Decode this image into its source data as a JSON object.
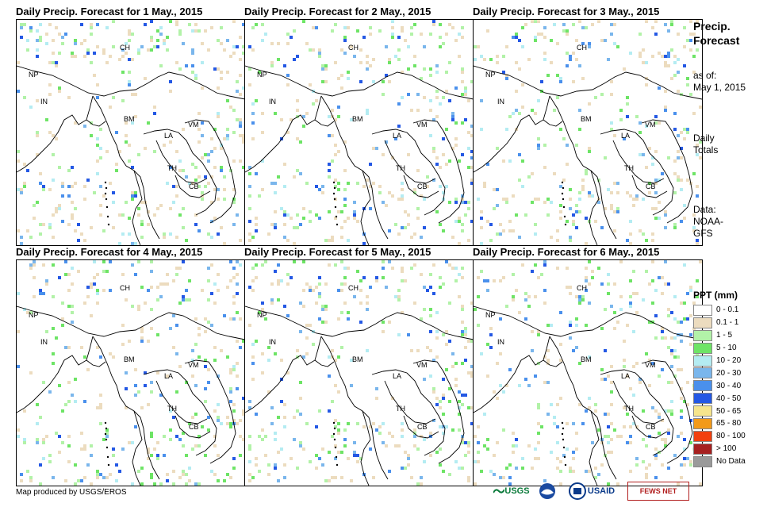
{
  "panels": [
    {
      "title": "Daily Precip. Forecast for 1 May., 2015"
    },
    {
      "title": "Daily Precip. Forecast for 2 May., 2015"
    },
    {
      "title": "Daily Precip. Forecast for 3 May., 2015"
    },
    {
      "title": "Daily Precip. Forecast for 4 May., 2015"
    },
    {
      "title": "Daily Precip. Forecast for 5 May., 2015"
    },
    {
      "title": "Daily Precip. Forecast for 6 May., 2015"
    }
  ],
  "country_labels": [
    "CH",
    "NP",
    "IN",
    "BM",
    "LA",
    "VM",
    "TH",
    "CB"
  ],
  "sidebar": {
    "title_line1": "Precip.",
    "title_line2": "Forecast",
    "asof_line1": "as of:",
    "asof_line2": "May 1, 2015",
    "totals_line1": "Daily",
    "totals_line2": "Totals",
    "data_line1": "Data:",
    "data_line2": "NOAA-",
    "data_line3": "GFS"
  },
  "legend": {
    "title": "PPT (mm)",
    "items": [
      {
        "label": "0 - 0.1",
        "color": "#ffffff"
      },
      {
        "label": "0.1 - 1",
        "color": "#ecdcbf"
      },
      {
        "label": "1 - 5",
        "color": "#b2f2a8"
      },
      {
        "label": "5 - 10",
        "color": "#6ee466"
      },
      {
        "label": "10 - 20",
        "color": "#b4ecf2"
      },
      {
        "label": "20 - 30",
        "color": "#7ab6ec"
      },
      {
        "label": "30 - 40",
        "color": "#4a90ec"
      },
      {
        "label": "40 - 50",
        "color": "#2458e4"
      },
      {
        "label": "50 - 65",
        "color": "#f6e58c"
      },
      {
        "label": "65 - 80",
        "color": "#f29a1a"
      },
      {
        "label": "80 - 100",
        "color": "#f2400f"
      },
      {
        "label": "> 100",
        "color": "#a62020"
      },
      {
        "label": "No Data",
        "color": "#9a9a9a"
      }
    ]
  },
  "credit": "Map produced by USGS/EROS",
  "logos": [
    "USGS",
    "NOAA",
    "USAID",
    "FEWS NET"
  ]
}
